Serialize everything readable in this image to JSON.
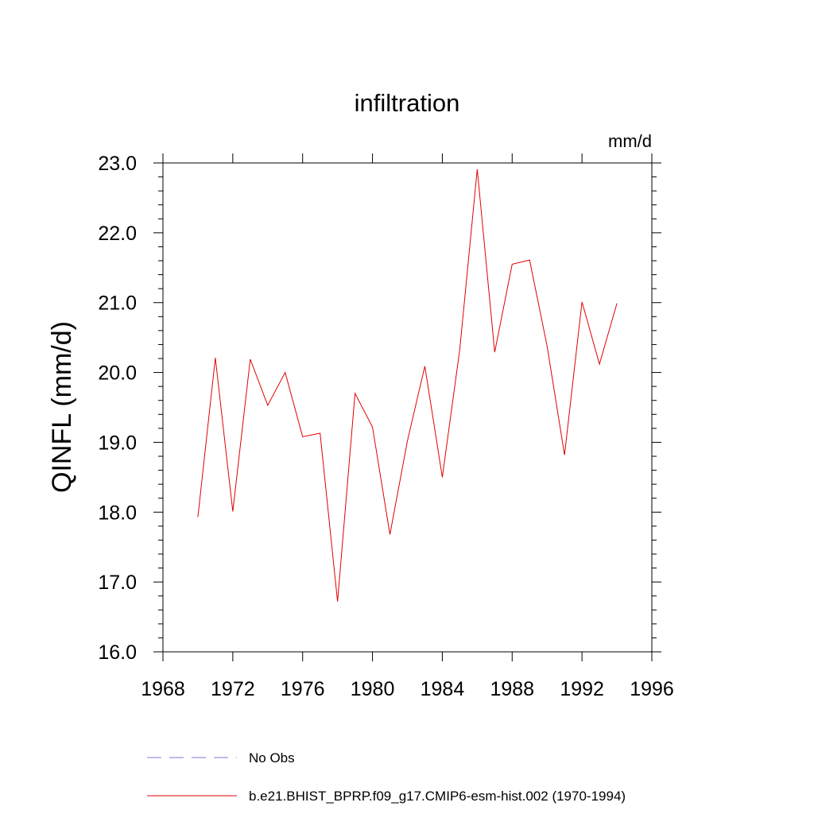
{
  "chart_data": {
    "type": "line",
    "title": "infiltration",
    "units_label": "mm/d",
    "ylabel": "QINFL  (mm/d)",
    "xlabel": "",
    "xlim": [
      1968,
      1996
    ],
    "ylim": [
      16.0,
      23.0
    ],
    "x_ticks": [
      "1968",
      "1972",
      "1976",
      "1980",
      "1984",
      "1988",
      "1992",
      "1996"
    ],
    "y_ticks": [
      "16.0",
      "17.0",
      "18.0",
      "19.0",
      "20.0",
      "21.0",
      "22.0",
      "23.0"
    ],
    "x": [
      1970,
      1971,
      1972,
      1973,
      1974,
      1975,
      1976,
      1977,
      1978,
      1979,
      1980,
      1981,
      1982,
      1983,
      1984,
      1985,
      1986,
      1987,
      1988,
      1989,
      1990,
      1991,
      1992,
      1993,
      1994
    ],
    "series": [
      {
        "name": "b.e21.BHIST_BPRP.f09_g17.CMIP6-esm-hist.002 (1970-1994)",
        "color": "#e00000",
        "values": [
          17.93,
          20.21,
          18.01,
          20.19,
          19.53,
          20.0,
          19.08,
          19.13,
          16.72,
          19.7,
          19.22,
          17.68,
          19.02,
          20.09,
          18.5,
          20.33,
          22.91,
          20.29,
          21.55,
          21.61,
          20.38,
          18.82,
          21.01,
          20.12,
          20.99
        ]
      }
    ],
    "legend": {
      "placement": "bottom",
      "entries": [
        {
          "label": "No Obs",
          "color": "#7a7ad0",
          "style": "dashed"
        },
        {
          "label": "b.e21.BHIST_BPRP.f09_g17.CMIP6-esm-hist.002 (1970-1994)",
          "color": "#e00000",
          "style": "solid"
        }
      ]
    },
    "grid": false
  }
}
